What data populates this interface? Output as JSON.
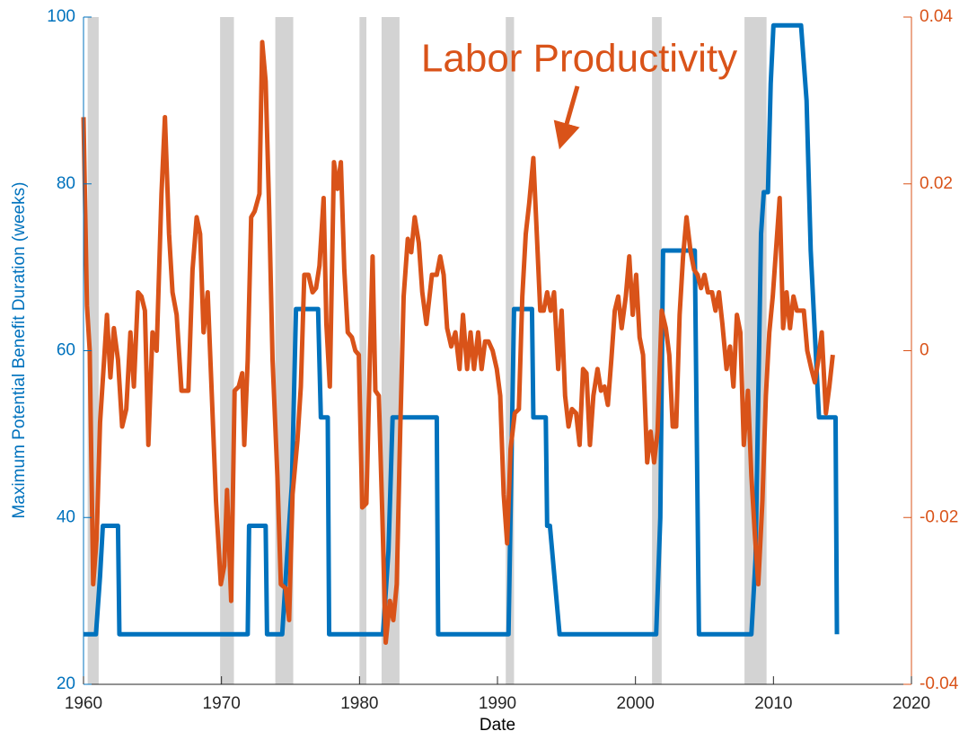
{
  "chart_data": {
    "type": "line",
    "xlabel": "Date",
    "ylabel": "Maximum Potential Benefit Duration (weeks)",
    "annotation": "Labor Productivity",
    "xlim": [
      1960,
      2020
    ],
    "xticks": [
      1960,
      1970,
      1980,
      1990,
      2000,
      2010,
      2020
    ],
    "ylim": [
      20,
      100
    ],
    "yticks": [
      20,
      40,
      60,
      80,
      100
    ],
    "y2lim": [
      -0.04,
      0.04
    ],
    "y2ticks": [
      -0.04,
      -0.02,
      0,
      0.02,
      0.04
    ],
    "y_color": "#0072bd",
    "y2_color": "#d95319",
    "shade_color": "#d3d3d3",
    "shaded_periods": [
      {
        "start": 1960.3,
        "end": 1961.1
      },
      {
        "start": 1969.9,
        "end": 1970.9
      },
      {
        "start": 1973.9,
        "end": 1975.2
      },
      {
        "start": 1980.0,
        "end": 1980.5
      },
      {
        "start": 1981.6,
        "end": 1982.9
      },
      {
        "start": 1990.6,
        "end": 1991.2
      },
      {
        "start": 2001.2,
        "end": 2001.9
      },
      {
        "start": 2007.9,
        "end": 2009.5
      }
    ],
    "series": [
      {
        "color": "#0072bd",
        "x": [
          1960.0,
          1960.9,
          1961.2,
          1961.4,
          1962.5,
          1962.6,
          1971.9,
          1972.0,
          1973.2,
          1973.3,
          1974.4,
          1974.7,
          1975.1,
          1975.4,
          1977.0,
          1977.2,
          1977.7,
          1977.8,
          1981.7,
          1982.1,
          1982.4,
          1985.6,
          1985.7,
          1990.8,
          1991.2,
          1992.5,
          1992.6,
          1993.5,
          1993.6,
          1993.8,
          1994.5,
          2001.5,
          2001.8,
          2002.0,
          2004.3,
          2004.6,
          2008.4,
          2008.7,
          2009.1,
          2009.3,
          2009.6,
          2009.8,
          2010.0,
          2012.0,
          2012.4,
          2012.7,
          2013.3,
          2014.5,
          2014.6
        ],
        "values": [
          26,
          26,
          33,
          39,
          39,
          26,
          26,
          39,
          39,
          26,
          26,
          34,
          44,
          65,
          65,
          52,
          52,
          26,
          26,
          36,
          52,
          52,
          26,
          26,
          65,
          65,
          52,
          52,
          39,
          39,
          26,
          26,
          40,
          72,
          72,
          26,
          26,
          35,
          74,
          79,
          79,
          92,
          99,
          99,
          90,
          72,
          52,
          52,
          26
        ]
      },
      {
        "color": "#d95319",
        "axis": "y2",
        "x": [
          1960.0,
          1960.25,
          1960.45,
          1960.7,
          1960.95,
          1961.2,
          1961.45,
          1961.7,
          1961.95,
          1962.2,
          1962.5,
          1962.8,
          1963.1,
          1963.4,
          1963.65,
          1963.95,
          1964.2,
          1964.45,
          1964.7,
          1965.0,
          1965.3,
          1965.65,
          1965.9,
          1966.2,
          1966.45,
          1966.75,
          1967.1,
          1967.6,
          1967.9,
          1968.2,
          1968.45,
          1968.7,
          1969.0,
          1969.3,
          1969.6,
          1969.95,
          1970.2,
          1970.4,
          1970.7,
          1970.95,
          1971.25,
          1971.5,
          1971.65,
          1971.9,
          1972.15,
          1972.4,
          1972.75,
          1972.95,
          1973.2,
          1973.45,
          1973.7,
          1974.05,
          1974.3,
          1974.65,
          1974.9,
          1975.15,
          1975.5,
          1975.75,
          1976.0,
          1976.3,
          1976.6,
          1976.85,
          1977.1,
          1977.4,
          1977.6,
          1977.85,
          1978.15,
          1978.4,
          1978.65,
          1978.9,
          1979.15,
          1979.45,
          1979.7,
          1979.95,
          1980.2,
          1980.5,
          1980.75,
          1980.95,
          1981.15,
          1981.4,
          1981.65,
          1981.9,
          1982.2,
          1982.45,
          1982.7,
          1982.95,
          1983.2,
          1983.5,
          1983.75,
          1984.0,
          1984.3,
          1984.55,
          1984.85,
          1985.25,
          1985.6,
          1985.85,
          1986.1,
          1986.35,
          1986.65,
          1986.95,
          1987.25,
          1987.5,
          1987.8,
          1988.05,
          1988.3,
          1988.6,
          1988.85,
          1989.1,
          1989.35,
          1989.65,
          1989.95,
          1990.2,
          1990.45,
          1990.7,
          1990.95,
          1991.25,
          1991.55,
          1991.8,
          1992.05,
          1992.3,
          1992.6,
          1992.85,
          1993.1,
          1993.35,
          1993.6,
          1993.85,
          1994.1,
          1994.4,
          1994.65,
          1994.9,
          1995.15,
          1995.4,
          1995.7,
          1995.95,
          1996.2,
          1996.45,
          1996.7,
          1996.95,
          1997.25,
          1997.5,
          1997.75,
          1998.0,
          1998.25,
          1998.5,
          1998.75,
          1999.0,
          1999.3,
          1999.55,
          1999.8,
          2000.05,
          2000.3,
          2000.55,
          2000.85,
          2001.1,
          2001.35,
          2001.6,
          2001.9,
          2002.2,
          2002.45,
          2002.7,
          2002.95,
          2003.2,
          2003.45,
          2003.7,
          2004.0,
          2004.25,
          2004.5,
          2004.75,
          2005.0,
          2005.25,
          2005.55,
          2005.8,
          2006.05,
          2006.3,
          2006.6,
          2006.85,
          2007.1,
          2007.35,
          2007.6,
          2007.85,
          2008.15,
          2008.4,
          2008.65,
          2008.9,
          2009.2,
          2009.45,
          2009.7,
          2009.95,
          2010.2,
          2010.45,
          2010.7,
          2010.95,
          2011.2,
          2011.45,
          2011.7,
          2011.95,
          2012.2,
          2012.45,
          2012.75,
          2013.0,
          2013.25,
          2013.5,
          2013.8,
          2014.05,
          2014.3
        ],
        "values": [
          0.028,
          0.0054,
          0,
          -0.028,
          -0.0226,
          -0.0086,
          -0.0022,
          0.0043,
          -0.0032,
          0.0027,
          -0.0011,
          -0.0091,
          -0.007,
          0.0022,
          -0.0043,
          0.007,
          0.0065,
          0.0048,
          -0.0113,
          0.0022,
          0,
          0.0188,
          0.028,
          0.014,
          0.007,
          0.0043,
          -0.0048,
          -0.0048,
          0.0097,
          0.016,
          0.014,
          0.0022,
          0.007,
          -0.0054,
          -0.018,
          -0.028,
          -0.0258,
          -0.0167,
          -0.03,
          -0.0048,
          -0.0043,
          -0.0027,
          -0.0113,
          -0.0011,
          0.016,
          0.0167,
          0.0188,
          0.037,
          0.0323,
          0.0172,
          -0.0011,
          -0.015,
          -0.028,
          -0.0285,
          -0.0323,
          -0.0172,
          -0.0108,
          -0.0043,
          0.0091,
          0.0091,
          0.007,
          0.0075,
          0.0102,
          0.0183,
          0.0032,
          -0.0043,
          0.0226,
          0.0194,
          0.0226,
          0.0097,
          0.0022,
          0.0016,
          0,
          -0.0005,
          -0.0188,
          -0.0183,
          -0.0011,
          0.0113,
          -0.0048,
          -0.0054,
          -0.0194,
          -0.035,
          -0.03,
          -0.0323,
          -0.028,
          -0.0097,
          0.0065,
          0.0134,
          0.0118,
          0.016,
          0.0129,
          0.007,
          0.0032,
          0.0091,
          0.0091,
          0.0113,
          0.0091,
          0.0027,
          0.0005,
          0.0022,
          -0.0022,
          0.0043,
          -0.0022,
          0.0022,
          -0.0022,
          0.0022,
          -0.0022,
          0.0011,
          0.0011,
          0,
          -0.0022,
          -0.0054,
          -0.0172,
          -0.0231,
          -0.0118,
          -0.0075,
          -0.007,
          0.0065,
          0.014,
          0.0177,
          0.0231,
          0.014,
          0.0048,
          0.0048,
          0.007,
          0.0048,
          0.007,
          -0.0022,
          0.0048,
          -0.0054,
          -0.0091,
          -0.007,
          -0.0075,
          -0.0113,
          -0.0022,
          -0.0027,
          -0.0113,
          -0.0054,
          -0.0022,
          -0.0048,
          -0.0043,
          -0.0065,
          -0.0011,
          0.0048,
          0.0065,
          0.0027,
          0.0065,
          0.0113,
          0.0043,
          0.0091,
          0.0016,
          -0.0005,
          -0.0134,
          -0.0097,
          -0.0134,
          -0.0097,
          0.0048,
          0.0027,
          -0.0005,
          -0.0091,
          -0.0091,
          0.0043,
          0.0113,
          0.016,
          0.0118,
          0.0097,
          0.0091,
          0.0075,
          0.0091,
          0.007,
          0.007,
          0.0048,
          0.007,
          0.0032,
          -0.0022,
          0.0005,
          -0.0043,
          0.0043,
          0.0022,
          -0.0113,
          -0.0048,
          -0.015,
          -0.022,
          -0.028,
          -0.018,
          -0.0054,
          0.0022,
          0.0065,
          0.0124,
          0.0183,
          0.0027,
          0.007,
          0.0027,
          0.0065,
          0.0048,
          0.0048,
          0.0048,
          0,
          -0.0022,
          -0.0038,
          -0.0011,
          0.0022,
          -0.0075,
          -0.0043,
          -0.0005
        ]
      }
    ]
  }
}
